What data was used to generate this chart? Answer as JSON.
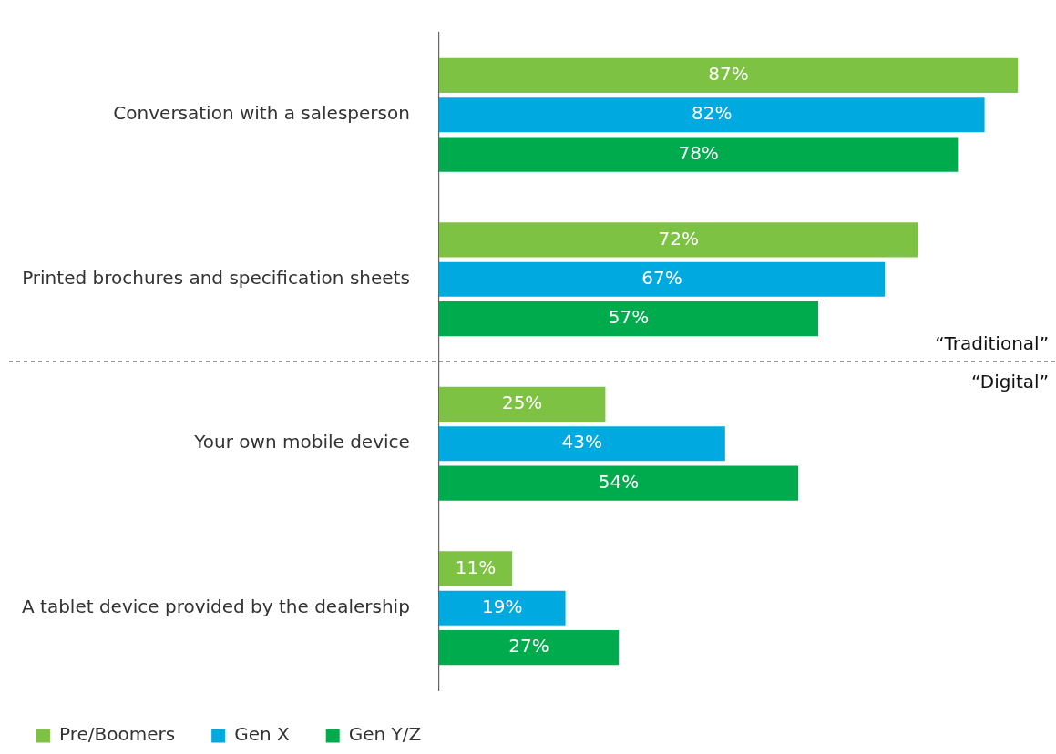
{
  "chart_data": {
    "type": "bar",
    "orientation": "horizontal",
    "categories": [
      "Conversation with a salesperson",
      "Printed brochures and specification sheets",
      "Your own mobile device",
      "A tablet device provided by the dealership"
    ],
    "series": [
      {
        "name": "Pre/Boomers",
        "color": "#7dc242",
        "values": [
          87,
          72,
          25,
          11
        ],
        "value_labels": [
          "87%",
          "72%",
          "25%",
          "11%"
        ]
      },
      {
        "name": "Gen X",
        "color": "#00a9e0",
        "values": [
          82,
          67,
          43,
          19
        ],
        "value_labels": [
          "82%",
          "67%",
          "43%",
          "19%"
        ]
      },
      {
        "name": "Gen Y/Z",
        "color": "#00ab4e",
        "values": [
          78,
          57,
          54,
          27
        ],
        "value_labels": [
          "78%",
          "57%",
          "54%",
          "27%"
        ]
      }
    ],
    "tick_labels": "y",
    "grid": false,
    "legend": "bottom left",
    "annotations": [
      "“Traditional”",
      "“Digital”"
    ]
  }
}
